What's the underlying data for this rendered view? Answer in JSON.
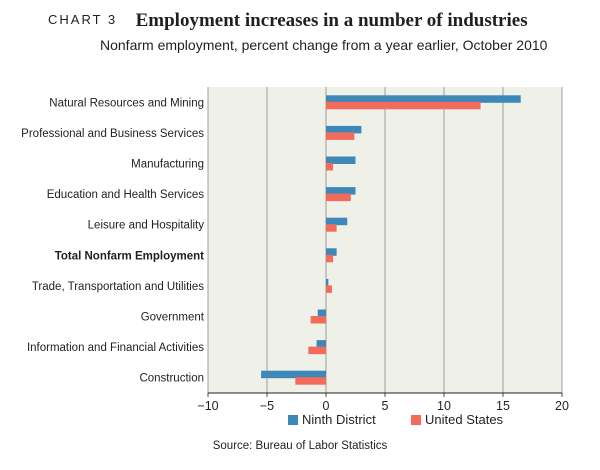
{
  "header": {
    "chart_number": "CHART 3",
    "title": "Employment increases in a number of industries",
    "subtitle": "Nonfarm employment, percent change from a year earlier, October 2010"
  },
  "source": "Source: Bureau of Labor Statistics",
  "colors": {
    "plot_background": "#eff0e8",
    "grid": "#8a8a8a",
    "ninth_district": "#3d87b9",
    "united_states": "#f26b5b"
  },
  "chart_data": {
    "type": "bar",
    "orientation": "horizontal",
    "title": "Employment increases in a number of industries",
    "subtitle": "Nonfarm employment, percent change from a year earlier, October 2010",
    "categories": [
      "Natural Resources and Mining",
      "Professional and Business Services",
      "Manufacturing",
      "Education and Health Services",
      "Leisure and Hospitality",
      "Total Nonfarm Employment",
      "Trade, Transportation and Utilities",
      "Government",
      "Information and Financial Activities",
      "Construction"
    ],
    "bold_category": "Total Nonfarm Employment",
    "series": [
      {
        "name": "Ninth District",
        "color": "#3d87b9",
        "values": [
          16.5,
          3.0,
          2.5,
          2.5,
          1.8,
          0.9,
          0.2,
          -0.7,
          -0.8,
          -5.5
        ]
      },
      {
        "name": "United States",
        "color": "#f26b5b",
        "values": [
          13.1,
          2.4,
          0.6,
          2.1,
          0.9,
          0.6,
          0.5,
          -1.3,
          -1.5,
          -2.6
        ]
      }
    ],
    "xlim": [
      -10,
      20
    ],
    "xticks": [
      -10,
      -5,
      0,
      5,
      10,
      15,
      20
    ],
    "xtick_labels": [
      "−10",
      "−5",
      "0",
      "5",
      "10",
      "15",
      "20"
    ],
    "grid": true,
    "legend_position": "bottom"
  }
}
